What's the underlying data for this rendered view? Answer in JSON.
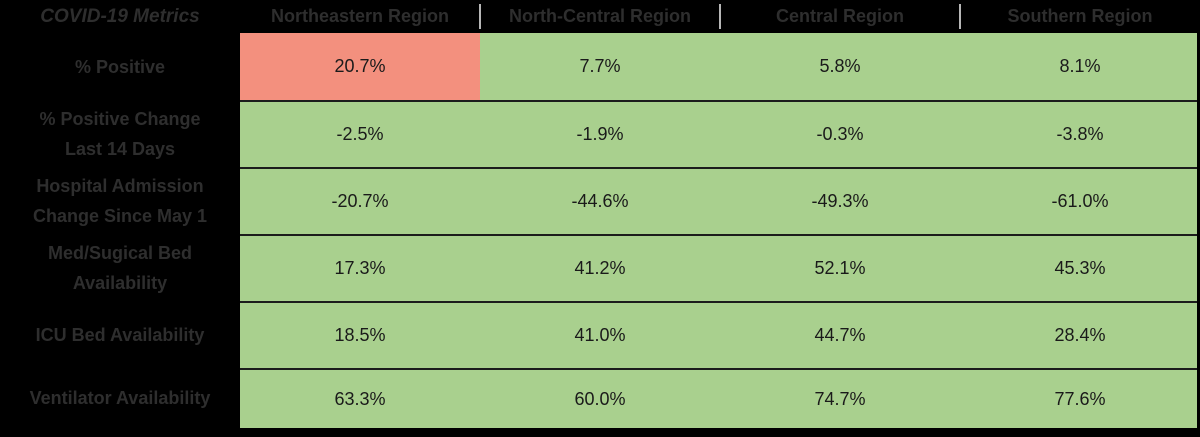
{
  "chart_data": {
    "type": "table",
    "title": "COVID-19 Metrics",
    "columns": [
      "Northeastern Region",
      "North-Central Region",
      "Central Region",
      "Southern Region"
    ],
    "rows": [
      {
        "metric": "% Positive",
        "values": [
          20.7,
          7.7,
          5.8,
          8.1
        ]
      },
      {
        "metric": "% Positive Change Last 14 Days",
        "values": [
          -2.5,
          -1.9,
          -0.3,
          -3.8
        ]
      },
      {
        "metric": "Hospital Admission Change Since May 1",
        "values": [
          -20.7,
          -44.6,
          -49.3,
          -61.0
        ]
      },
      {
        "metric": "Med/Sugical Bed Availability",
        "values": [
          17.3,
          41.2,
          52.1,
          45.3
        ]
      },
      {
        "metric": "ICU Bed Availability",
        "values": [
          18.5,
          41.0,
          44.7,
          28.4
        ]
      },
      {
        "metric": "Ventilator Availability",
        "values": [
          63.3,
          60.0,
          74.7,
          77.6
        ]
      }
    ],
    "units": "%",
    "highlighted_cell": {
      "row": "% Positive",
      "column": "Northeastern Region",
      "color": "#f3907e"
    }
  },
  "table": {
    "title": "COVID-19 Metrics",
    "columns": [
      "Northeastern Region",
      "North-Central Region",
      "Central Region",
      "Southern Region"
    ],
    "rows": [
      {
        "label": "% Positive",
        "values": [
          "20.7%",
          "7.7%",
          "5.8%",
          "8.1%"
        ]
      },
      {
        "label": "% Positive Change\nLast 14 Days",
        "values": [
          "-2.5%",
          "-1.9%",
          "-0.3%",
          "-3.8%"
        ]
      },
      {
        "label": "Hospital Admission\nChange Since May 1",
        "values": [
          "-20.7%",
          "-44.6%",
          "-49.3%",
          "-61.0%"
        ]
      },
      {
        "label": "Med/Sugical Bed\nAvailability",
        "values": [
          "17.3%",
          "41.2%",
          "52.1%",
          "45.3%"
        ]
      },
      {
        "label": "ICU Bed Availability",
        "values": [
          "18.5%",
          "41.0%",
          "44.7%",
          "28.4%"
        ]
      },
      {
        "label": "Ventilator Availability",
        "values": [
          "63.3%",
          "60.0%",
          "74.7%",
          "77.6%"
        ]
      }
    ]
  },
  "theme": {
    "table_bg": "#000000",
    "header_text": "#2e2e2e",
    "cell_green": "#a9d08e",
    "cell_alert": "#f3907e",
    "row_divider": "#1c1c1c",
    "separator": "#b7b7b7",
    "value_text": "#1a1a1a"
  }
}
